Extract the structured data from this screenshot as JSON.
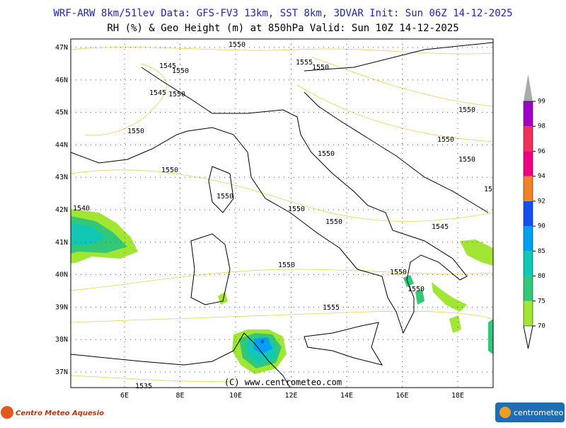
{
  "header": {
    "line1": "WRF-ARW 8km/51lev  Data: GFS-FV3 13km, SST 8km, 3DVAR  Init: Sun 06Z 14-12-2025",
    "line2": "RH (%) & Geo Height (m) at 850hPa  Valid: Sun 10Z 14-12-2025"
  },
  "map": {
    "lat_labels": [
      "47N",
      "46N",
      "45N",
      "44N",
      "43N",
      "42N",
      "41N",
      "40N",
      "39N",
      "38N",
      "37N"
    ],
    "lon_labels": [
      "6E",
      "8E",
      "10E",
      "12E",
      "14E",
      "16E",
      "18E"
    ],
    "contour_labels": [
      "1550",
      "1545",
      "1550",
      "1555",
      "1550",
      "1545",
      "1550",
      "1550",
      "1550",
      "1550",
      "1550",
      "1550",
      "1550",
      "1550",
      "15",
      "1540",
      "1550",
      "1550",
      "1545",
      "1550",
      "1550",
      "1550",
      "1555",
      "1535"
    ]
  },
  "colorbar": {
    "levels": [
      70,
      75,
      80,
      85,
      90,
      92,
      94,
      96,
      98,
      99
    ],
    "colors": [
      "#a0e632",
      "#32c878",
      "#10c8b4",
      "#00a0f0",
      "#1450f0",
      "#f08228",
      "#f00082",
      "#f0325a",
      "#a000c8"
    ]
  },
  "footer": {
    "copyright": "(C) www.centrometeo.com",
    "logo_left": "Centro Meteo Aquesio",
    "logo_right": "centrometeo"
  }
}
